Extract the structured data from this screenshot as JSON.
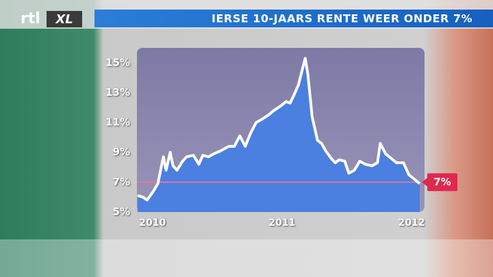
{
  "logo_text": [
    "rtl",
    "XL"
  ],
  "chart_data": {
    "type": "area",
    "title": "IERSE 10-JAARS RENTE WEER ONDER 7%",
    "x": [
      2009.884,
      2009.926,
      2009.958,
      2010.0,
      2010.042,
      2010.084,
      2010.105,
      2010.137,
      2010.158,
      2010.189,
      2010.232,
      2010.263,
      2010.316,
      2010.358,
      2010.389,
      2010.432,
      2010.474,
      2010.526,
      2010.589,
      2010.632,
      2010.674,
      2010.716,
      2010.758,
      2010.8,
      2010.842,
      2010.895,
      2010.937,
      2010.989,
      2011.032,
      2011.063,
      2011.095,
      2011.126,
      2011.158,
      2011.179,
      2011.2,
      2011.232,
      2011.274,
      2011.305,
      2011.337,
      2011.379,
      2011.411,
      2011.442,
      2011.484,
      2011.516,
      2011.558,
      2011.6,
      2011.642,
      2011.695,
      2011.737,
      2011.758,
      2011.8,
      2011.842,
      2011.884,
      2011.937,
      2011.979,
      2012.021,
      2012.063
    ],
    "series": [
      {
        "color": "#ffffff",
        "fill": "#4b7fe0",
        "values": [
          6.1,
          6.0,
          5.8,
          6.3,
          6.9,
          8.7,
          7.8,
          9.0,
          8.1,
          7.8,
          8.4,
          8.7,
          8.8,
          8.2,
          8.8,
          8.7,
          8.9,
          9.1,
          9.4,
          9.4,
          10.1,
          9.4,
          10.3,
          11.0,
          11.2,
          11.5,
          11.8,
          12.1,
          12.4,
          12.3,
          12.9,
          13.5,
          14.6,
          15.3,
          14.2,
          11.4,
          9.8,
          9.6,
          9.1,
          8.6,
          8.3,
          8.5,
          8.4,
          7.6,
          7.8,
          8.4,
          8.2,
          8.1,
          8.3,
          9.6,
          8.9,
          8.6,
          8.3,
          8.3,
          7.5,
          7.2,
          6.9
        ]
      }
    ],
    "xlim": [
      2009.88,
      2012.1
    ],
    "xticks": [
      2010,
      2011,
      2012
    ],
    "ylim": [
      5,
      16
    ],
    "yticks": [
      {
        "value": 5,
        "label": "5%"
      },
      {
        "value": 7,
        "label": "7%"
      },
      {
        "value": 9,
        "label": "9%"
      },
      {
        "value": 11,
        "label": "11%"
      },
      {
        "value": 13,
        "label": "13%"
      },
      {
        "value": 15,
        "label": "15%"
      }
    ],
    "reference_line": {
      "value": 7,
      "label": "7%",
      "color": "#e07a98"
    }
  }
}
